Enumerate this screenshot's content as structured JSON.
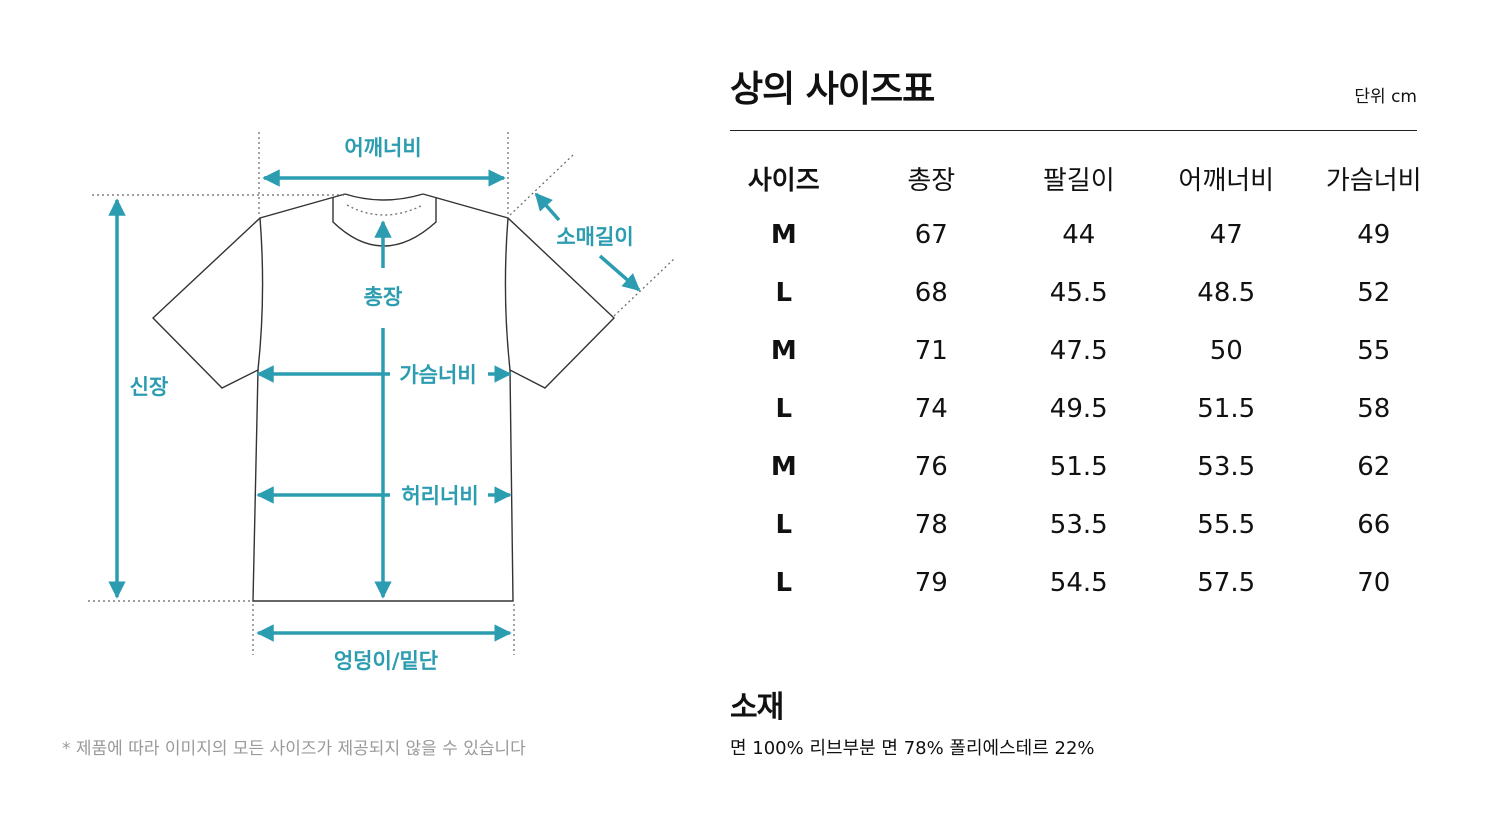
{
  "diagram": {
    "labels": {
      "shoulder": "어깨너비",
      "sleeve": "소매길이",
      "length": "총장",
      "height": "신장",
      "chest": "가슴너비",
      "waist": "허리너비",
      "hem": "엉덩이/밑단"
    },
    "accent_color": "#2c9db1",
    "note": "* 제품에 따라 이미지의 모든 사이즈가 제공되지 않을 수 있습니다"
  },
  "size_table": {
    "title": "상의 사이즈표",
    "unit": "단위 cm",
    "headers": [
      "사이즈",
      "총장",
      "팔길이",
      "어깨너비",
      "가슴너비"
    ],
    "rows": [
      [
        "M",
        "67",
        "44",
        "47",
        "49"
      ],
      [
        "L",
        "68",
        "45.5",
        "48.5",
        "52"
      ],
      [
        "M",
        "71",
        "47.5",
        "50",
        "55"
      ],
      [
        "L",
        "74",
        "49.5",
        "51.5",
        "58"
      ],
      [
        "M",
        "76",
        "51.5",
        "53.5",
        "62"
      ],
      [
        "L",
        "78",
        "53.5",
        "55.5",
        "66"
      ],
      [
        "L",
        "79",
        "54.5",
        "57.5",
        "70"
      ]
    ]
  },
  "material": {
    "title": "소재",
    "text": "면 100% 리브부분 면 78% 폴리에스테르 22%"
  }
}
